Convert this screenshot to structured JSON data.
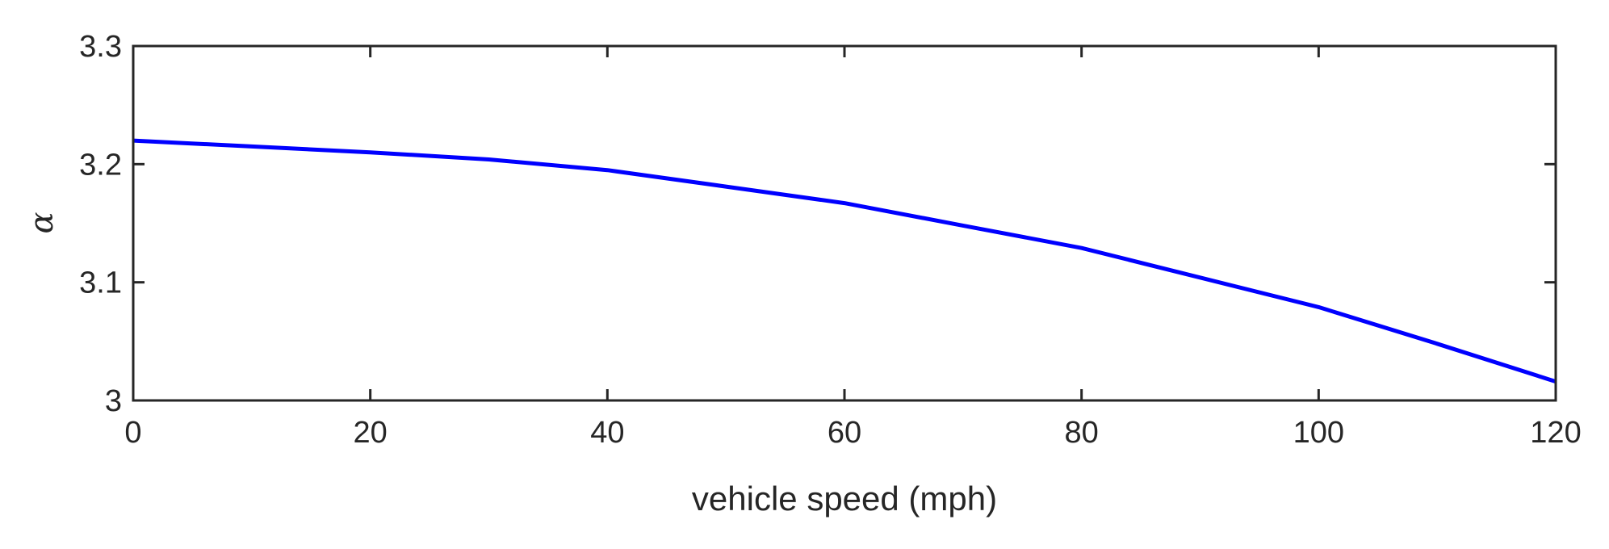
{
  "chart_data": {
    "type": "line",
    "xlabel": "vehicle speed (mph)",
    "ylabel": "α",
    "xlim": [
      0,
      120
    ],
    "ylim": [
      3,
      3.3
    ],
    "xticks": [
      0,
      20,
      40,
      60,
      80,
      100,
      120
    ],
    "yticks": [
      3,
      3.1,
      3.2,
      3.3
    ],
    "xtick_labels": [
      "0",
      "20",
      "40",
      "60",
      "80",
      "100",
      "120"
    ],
    "ytick_labels": [
      "3",
      "3.1",
      "3.2",
      "3.3"
    ],
    "grid": false,
    "series": [
      {
        "color": "#0000ff",
        "x": [
          0,
          10,
          20,
          30,
          40,
          50,
          60,
          70,
          80,
          90,
          100,
          110,
          120
        ],
        "y": [
          3.22,
          3.215,
          3.21,
          3.204,
          3.195,
          3.181,
          3.167,
          3.148,
          3.129,
          3.104,
          3.079,
          3.048,
          3.016
        ]
      }
    ]
  }
}
